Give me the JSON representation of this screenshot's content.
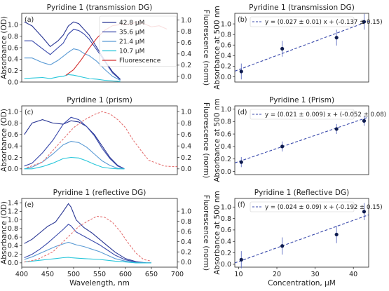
{
  "chart_data": [
    {
      "type": "line",
      "panel": "(a)",
      "title": "Pyridine 1 (transmission DG)",
      "ylabel": "Absorbance (OD)",
      "ylabel_right": "Fluorescence (norm)",
      "xlim": [
        400,
        700
      ],
      "ylim": [
        0,
        1.2
      ],
      "ylim_right": [
        -0.1,
        1.12
      ],
      "yticks": [
        "0.0",
        "0.2",
        "0.4",
        "0.6",
        "0.8",
        "1.0"
      ],
      "yticks_right": [
        "0.0",
        "0.2",
        "0.4",
        "0.6",
        "0.8",
        "1.0"
      ],
      "xticks_visible": false,
      "legend": "top-right",
      "series": [
        {
          "name": "42.8 μM",
          "color": "#283593",
          "x": [
            405,
            420,
            440,
            455,
            470,
            480,
            490,
            500,
            510,
            520,
            530,
            545,
            560,
            575,
            590
          ],
          "y": [
            1.05,
            0.98,
            0.78,
            0.62,
            0.72,
            0.82,
            0.98,
            1.05,
            1.02,
            0.92,
            0.82,
            0.6,
            0.38,
            0.18,
            0.05
          ]
        },
        {
          "name": "35.6 μM",
          "color": "#3949ab",
          "x": [
            405,
            420,
            440,
            455,
            470,
            480,
            490,
            500,
            510,
            520,
            530,
            545,
            560,
            575,
            590
          ],
          "y": [
            0.72,
            0.72,
            0.58,
            0.48,
            0.6,
            0.68,
            0.84,
            0.92,
            0.9,
            0.84,
            0.75,
            0.56,
            0.36,
            0.16,
            0.04
          ]
        },
        {
          "name": "21.4 μM",
          "color": "#5b9bd5",
          "x": [
            405,
            420,
            440,
            455,
            470,
            480,
            490,
            500,
            510,
            520,
            530,
            545,
            560,
            575,
            590
          ],
          "y": [
            0.42,
            0.42,
            0.34,
            0.3,
            0.38,
            0.45,
            0.52,
            0.58,
            0.56,
            0.5,
            0.46,
            0.36,
            0.22,
            0.1,
            0.03
          ]
        },
        {
          "name": "10.7 μM",
          "color": "#26c6da",
          "x": [
            405,
            420,
            440,
            455,
            470,
            480,
            490,
            500,
            510,
            520,
            530,
            545,
            560,
            575,
            590
          ],
          "y": [
            0.06,
            0.07,
            0.08,
            0.06,
            0.09,
            0.1,
            0.13,
            0.12,
            0.1,
            0.08,
            0.06,
            0.05,
            0.03,
            0.02,
            0.01
          ]
        },
        {
          "name": "Fluorescence",
          "color": "#d32f2f",
          "axis": "right",
          "x": [
            485,
            500,
            515,
            530,
            545,
            560,
            575,
            590,
            605,
            620,
            635,
            650,
            665,
            680
          ],
          "y": [
            0.02,
            0.12,
            0.3,
            0.5,
            0.68,
            0.82,
            0.9,
            0.92,
            0.92,
            0.96,
            0.94,
            0.88,
            0.9,
            0.84
          ]
        }
      ]
    },
    {
      "type": "scatter",
      "panel": "(b)",
      "title": "Pyridine 1 (transmission DG)",
      "ylabel": "Absorbance at 500 nm",
      "xlim": [
        9,
        44
      ],
      "ylim": [
        -0.1,
        1.2
      ],
      "yticks": [
        "0.0",
        "0.2",
        "0.4",
        "0.6",
        "0.8",
        "1.0"
      ],
      "xticks_visible": false,
      "fit_label": "y = (0.027 ± 0.01) x + (-0.137 ± 0.15)",
      "fit": {
        "slope": 0.027,
        "intercept": -0.137
      },
      "points": {
        "x": [
          10.7,
          21.4,
          35.6,
          42.8
        ],
        "y": [
          0.1,
          0.53,
          0.74,
          1.04
        ],
        "err": [
          0.15,
          0.15,
          0.15,
          0.15
        ]
      }
    },
    {
      "type": "line",
      "panel": "(c)",
      "title": "Pyridine 1 (prism)",
      "ylabel": "Absorbance (OD)",
      "ylabel_right": "Fluorescence (norm)",
      "xlim": [
        400,
        700
      ],
      "ylim": [
        -0.1,
        1.1
      ],
      "ylim_right": [
        -0.1,
        1.1
      ],
      "yticks": [
        "0.0",
        "0.2",
        "0.4",
        "0.6",
        "0.8",
        "1.0"
      ],
      "yticks_right": [
        "0.0",
        "0.2",
        "0.4",
        "0.6",
        "0.8",
        "1.0"
      ],
      "xticks_visible": false,
      "series": [
        {
          "name": "42.8 μM",
          "color": "#283593",
          "x": [
            405,
            420,
            440,
            460,
            480,
            495,
            510,
            525,
            540,
            555,
            570,
            585,
            598
          ],
          "y": [
            0.6,
            0.8,
            0.86,
            0.8,
            0.78,
            0.84,
            0.82,
            0.74,
            0.6,
            0.4,
            0.2,
            0.06,
            0.0
          ]
        },
        {
          "name": "35.6 μM",
          "color": "#3949ab",
          "x": [
            405,
            420,
            440,
            460,
            480,
            495,
            510,
            525,
            540,
            555,
            570,
            585,
            598
          ],
          "y": [
            0.05,
            0.1,
            0.28,
            0.5,
            0.78,
            0.9,
            0.86,
            0.74,
            0.58,
            0.36,
            0.18,
            0.05,
            0.0
          ]
        },
        {
          "name": "21.4 μM",
          "color": "#5b9bd5",
          "x": [
            405,
            420,
            440,
            460,
            480,
            495,
            510,
            525,
            540,
            555,
            570,
            585,
            598
          ],
          "y": [
            0.0,
            0.03,
            0.12,
            0.26,
            0.42,
            0.48,
            0.46,
            0.38,
            0.26,
            0.14,
            0.06,
            0.01,
            0.0
          ]
        },
        {
          "name": "10.7 μM",
          "color": "#26c6da",
          "x": [
            405,
            420,
            440,
            460,
            480,
            495,
            510,
            525,
            540,
            555,
            570,
            585,
            598
          ],
          "y": [
            0.0,
            0.0,
            0.04,
            0.1,
            0.18,
            0.2,
            0.19,
            0.14,
            0.08,
            0.03,
            0.01,
            0.0,
            0.0
          ]
        },
        {
          "name": "Fluorescence",
          "color": "#e57373",
          "dashed": true,
          "axis": "right",
          "x": [
            410,
            440,
            470,
            500,
            520,
            540,
            555,
            570,
            585,
            600,
            615,
            630,
            645,
            660,
            675,
            690,
            700
          ],
          "y": [
            0.02,
            0.12,
            0.42,
            0.72,
            0.85,
            0.95,
            1.0,
            0.96,
            0.86,
            0.72,
            0.5,
            0.32,
            0.15,
            0.1,
            0.05,
            0.04,
            0.04
          ]
        }
      ]
    },
    {
      "type": "scatter",
      "panel": "(d)",
      "title": "Pyridine 1 (Prism)",
      "ylabel": "Absorbance at 500 nm",
      "xlim": [
        9,
        44
      ],
      "ylim": [
        -0.05,
        1.05
      ],
      "yticks": [
        "0.0",
        "0.2",
        "0.4",
        "0.6",
        "0.8",
        "1.0"
      ],
      "xticks_visible": false,
      "fit_label": "y = (0.021 ± 0.009) x + (-0.052 ± 0.08)",
      "fit": {
        "slope": 0.021,
        "intercept": -0.052
      },
      "points": {
        "x": [
          10.7,
          21.4,
          35.6,
          42.8
        ],
        "y": [
          0.15,
          0.4,
          0.68,
          0.81
        ],
        "err": [
          0.08,
          0.08,
          0.08,
          0.08
        ]
      }
    },
    {
      "type": "line",
      "panel": "(e)",
      "title": "Pyridine 1 (reflective DG)",
      "ylabel": "Absorbance (OD)",
      "ylabel_right": "Fluorescence (norm)",
      "xlabel": "Wavelength, nm",
      "xlim": [
        400,
        700
      ],
      "ylim": [
        -0.1,
        1.5
      ],
      "ylim_right": [
        -0.1,
        1.25
      ],
      "xticks": [
        "400",
        "450",
        "500",
        "550",
        "600",
        "650",
        "700"
      ],
      "yticks": [
        "0.0",
        "0.2",
        "0.4",
        "0.6",
        "0.8",
        "1.0",
        "1.2",
        "1.4"
      ],
      "yticks_right": [
        "0.0",
        "0.2",
        "0.4",
        "0.6",
        "0.8",
        "1.0"
      ],
      "series": [
        {
          "name": "42.8 μM",
          "color": "#283593",
          "x": [
            405,
            420,
            435,
            450,
            465,
            480,
            490,
            495,
            505,
            520,
            535,
            550,
            565,
            580,
            600,
            620,
            640,
            650
          ],
          "y": [
            0.45,
            0.55,
            0.7,
            0.85,
            0.95,
            1.2,
            1.38,
            1.3,
            1.0,
            0.82,
            0.7,
            0.55,
            0.4,
            0.25,
            0.1,
            0.03,
            0.0,
            0.0
          ]
        },
        {
          "name": "35.6 μM",
          "color": "#3949ab",
          "x": [
            405,
            420,
            435,
            450,
            465,
            480,
            490,
            495,
            505,
            520,
            535,
            550,
            565,
            580,
            600,
            620,
            640,
            650
          ],
          "y": [
            0.12,
            0.2,
            0.32,
            0.46,
            0.62,
            0.78,
            0.9,
            0.86,
            0.72,
            0.62,
            0.52,
            0.42,
            0.3,
            0.18,
            0.07,
            0.02,
            0.0,
            0.0
          ]
        },
        {
          "name": "21.4 μM",
          "color": "#5b9bd5",
          "x": [
            405,
            420,
            435,
            450,
            465,
            480,
            490,
            495,
            505,
            520,
            535,
            550,
            565,
            580,
            600,
            620,
            640,
            650
          ],
          "y": [
            0.08,
            0.14,
            0.22,
            0.3,
            0.38,
            0.44,
            0.48,
            0.46,
            0.42,
            0.38,
            0.32,
            0.26,
            0.18,
            0.1,
            0.04,
            0.01,
            0.0,
            0.0
          ]
        },
        {
          "name": "10.7 μM",
          "color": "#26c6da",
          "x": [
            405,
            420,
            435,
            450,
            465,
            480,
            490,
            495,
            505,
            520,
            535,
            550,
            565,
            580,
            600,
            620,
            640,
            650
          ],
          "y": [
            0.02,
            0.04,
            0.06,
            0.08,
            0.1,
            0.12,
            0.13,
            0.12,
            0.11,
            0.1,
            0.09,
            0.08,
            0.06,
            0.04,
            0.02,
            0.0,
            0.0,
            0.0
          ]
        },
        {
          "name": "Fluorescence",
          "color": "#e57373",
          "dashed": true,
          "axis": "right",
          "x": [
            405,
            430,
            460,
            490,
            510,
            530,
            545,
            560,
            575,
            590,
            605,
            620,
            635,
            650
          ],
          "y": [
            0.0,
            0.05,
            0.2,
            0.5,
            0.7,
            0.82,
            0.9,
            0.88,
            0.78,
            0.6,
            0.38,
            0.18,
            0.05,
            0.02
          ]
        }
      ]
    },
    {
      "type": "scatter",
      "panel": "(f)",
      "title": "Pyridine 1 (Reflective DG)",
      "ylabel": "Absorbance at 500 nm",
      "xlabel": "Concentration, μM",
      "xlim": [
        9,
        44
      ],
      "ylim": [
        -0.05,
        1.15
      ],
      "xticks": [
        "10",
        "20",
        "30",
        "40"
      ],
      "yticks": [
        "0.0",
        "0.2",
        "0.4",
        "0.6",
        "0.8",
        "1.0"
      ],
      "fit_label": "y = (0.024 ± 0.09) x + (-0.192 ± 0.15)",
      "fit": {
        "slope": 0.024,
        "intercept": -0.192
      },
      "points": {
        "x": [
          10.7,
          21.4,
          35.6,
          42.8
        ],
        "y": [
          0.08,
          0.32,
          0.52,
          0.92
        ],
        "err": [
          0.15,
          0.15,
          0.15,
          0.15
        ]
      }
    }
  ]
}
